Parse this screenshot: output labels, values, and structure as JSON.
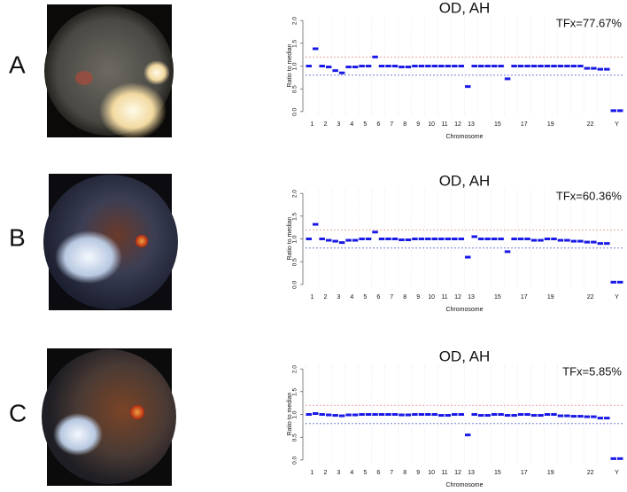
{
  "panels": [
    "A",
    "B",
    "C"
  ],
  "chart_data": [
    {
      "type": "segments",
      "title": "OD, AH",
      "annotation": "TFx=77.67%",
      "xlabel": "Chromosome",
      "ylabel": "Ratio to median",
      "categories": [
        "1",
        "2",
        "3",
        "4",
        "5",
        "6",
        "7",
        "8",
        "9",
        "10",
        "11",
        "12",
        "13",
        null,
        "15",
        null,
        "17",
        null,
        "19",
        null,
        null,
        "22",
        null,
        "Y"
      ],
      "values": [
        [
          1.0,
          1.38
        ],
        [
          1.0,
          0.98
        ],
        [
          0.9,
          0.85
        ],
        [
          0.98,
          0.98
        ],
        [
          1.0,
          1.0
        ],
        [
          1.2,
          1.0
        ],
        [
          1.0,
          1.0
        ],
        [
          0.98,
          0.98
        ],
        [
          1.0,
          1.0
        ],
        [
          1.0,
          1.0
        ],
        [
          1.0,
          1.0
        ],
        [
          1.0,
          1.0
        ],
        [
          0.55,
          1.0
        ],
        [
          1.0,
          1.0
        ],
        [
          1.0,
          1.0
        ],
        [
          0.72,
          1.0
        ],
        [
          1.0,
          1.0
        ],
        [
          1.0,
          1.0
        ],
        [
          1.0,
          1.0
        ],
        [
          1.0,
          1.0
        ],
        [
          1.0,
          1.0
        ],
        [
          0.95,
          0.95
        ],
        [
          0.93,
          0.93
        ],
        [
          0.02,
          0.02
        ]
      ],
      "color": "#1a1ae6",
      "ref_lines": [
        {
          "value": 1.2,
          "color": "#e08a80"
        },
        {
          "value": 0.8,
          "color": "#5a6ac8"
        }
      ],
      "ylim": [
        -0.08,
        2.1
      ],
      "yticks": [
        {
          "value": 0,
          "label": "0.0"
        },
        {
          "value": 0.5,
          "label": "0.5"
        },
        {
          "value": 1,
          "label": "1.0"
        },
        {
          "value": 1.5,
          "label": "1.5"
        },
        {
          "value": 2,
          "label": "2.0"
        }
      ],
      "grid": true
    },
    {
      "type": "segments",
      "title": "OD, AH",
      "annotation": "TFx=60.36%",
      "xlabel": "Chromosome",
      "ylabel": "Ratio to median",
      "categories": [
        "1",
        "2",
        "3",
        "4",
        "5",
        "6",
        "7",
        "8",
        "9",
        "10",
        "11",
        "12",
        "13",
        null,
        "15",
        null,
        "17",
        null,
        "19",
        null,
        null,
        "22",
        null,
        "Y"
      ],
      "values": [
        [
          1.0,
          1.32
        ],
        [
          1.0,
          0.97
        ],
        [
          0.95,
          0.92
        ],
        [
          0.97,
          0.97
        ],
        [
          1.0,
          1.0
        ],
        [
          1.15,
          1.0
        ],
        [
          1.0,
          1.0
        ],
        [
          0.98,
          0.98
        ],
        [
          1.0,
          1.0
        ],
        [
          1.0,
          1.0
        ],
        [
          1.0,
          1.0
        ],
        [
          1.0,
          1.0
        ],
        [
          0.6,
          1.05
        ],
        [
          1.0,
          1.0
        ],
        [
          1.0,
          1.0
        ],
        [
          0.72,
          1.0
        ],
        [
          1.0,
          1.0
        ],
        [
          0.97,
          0.97
        ],
        [
          1.0,
          1.0
        ],
        [
          0.97,
          0.97
        ],
        [
          0.95,
          0.95
        ],
        [
          0.93,
          0.93
        ],
        [
          0.9,
          0.9
        ],
        [
          0.05,
          0.05
        ]
      ],
      "color": "#1a1ae6",
      "ref_lines": [
        {
          "value": 1.2,
          "color": "#e08a80"
        },
        {
          "value": 0.8,
          "color": "#5a6ac8"
        }
      ],
      "ylim": [
        -0.08,
        2.1
      ],
      "yticks": [
        {
          "value": 0,
          "label": "0.0"
        },
        {
          "value": 0.5,
          "label": "0.5"
        },
        {
          "value": 1,
          "label": "1.0"
        },
        {
          "value": 1.5,
          "label": "1.5"
        },
        {
          "value": 2,
          "label": "2.0"
        }
      ],
      "grid": true
    },
    {
      "type": "segments",
      "title": "OD, AH",
      "annotation": "TFx=5.85%",
      "xlabel": "Chromosome",
      "ylabel": "Ratio to median",
      "categories": [
        "1",
        "2",
        "3",
        "4",
        "5",
        "6",
        "7",
        "8",
        "9",
        "10",
        "11",
        "12",
        "13",
        null,
        "15",
        null,
        "17",
        null,
        "19",
        null,
        null,
        "22",
        null,
        "Y"
      ],
      "values": [
        [
          1.0,
          1.02
        ],
        [
          1.0,
          0.99
        ],
        [
          0.98,
          0.97
        ],
        [
          0.99,
          0.99
        ],
        [
          1.0,
          1.0
        ],
        [
          1.0,
          1.0
        ],
        [
          1.0,
          1.0
        ],
        [
          0.99,
          0.99
        ],
        [
          1.0,
          1.0
        ],
        [
          1.0,
          1.0
        ],
        [
          0.98,
          0.98
        ],
        [
          1.0,
          1.0
        ],
        [
          0.55,
          1.0
        ],
        [
          0.98,
          0.98
        ],
        [
          1.0,
          1.0
        ],
        [
          0.98,
          0.98
        ],
        [
          1.0,
          1.0
        ],
        [
          0.98,
          0.98
        ],
        [
          1.0,
          1.0
        ],
        [
          0.97,
          0.97
        ],
        [
          0.96,
          0.96
        ],
        [
          0.95,
          0.95
        ],
        [
          0.92,
          0.92
        ],
        [
          0.03,
          0.03
        ]
      ],
      "color": "#1a1ae6",
      "ref_lines": [
        {
          "value": 1.2,
          "color": "#e08a80"
        },
        {
          "value": 0.8,
          "color": "#5a6ac8"
        }
      ],
      "ylim": [
        -0.08,
        2.1
      ],
      "yticks": [
        {
          "value": 0,
          "label": "0.0"
        },
        {
          "value": 0.5,
          "label": "0.5"
        },
        {
          "value": 1,
          "label": "1.0"
        },
        {
          "value": 1.5,
          "label": "1.5"
        },
        {
          "value": 2,
          "label": "2.0"
        }
      ],
      "grid": true
    }
  ]
}
